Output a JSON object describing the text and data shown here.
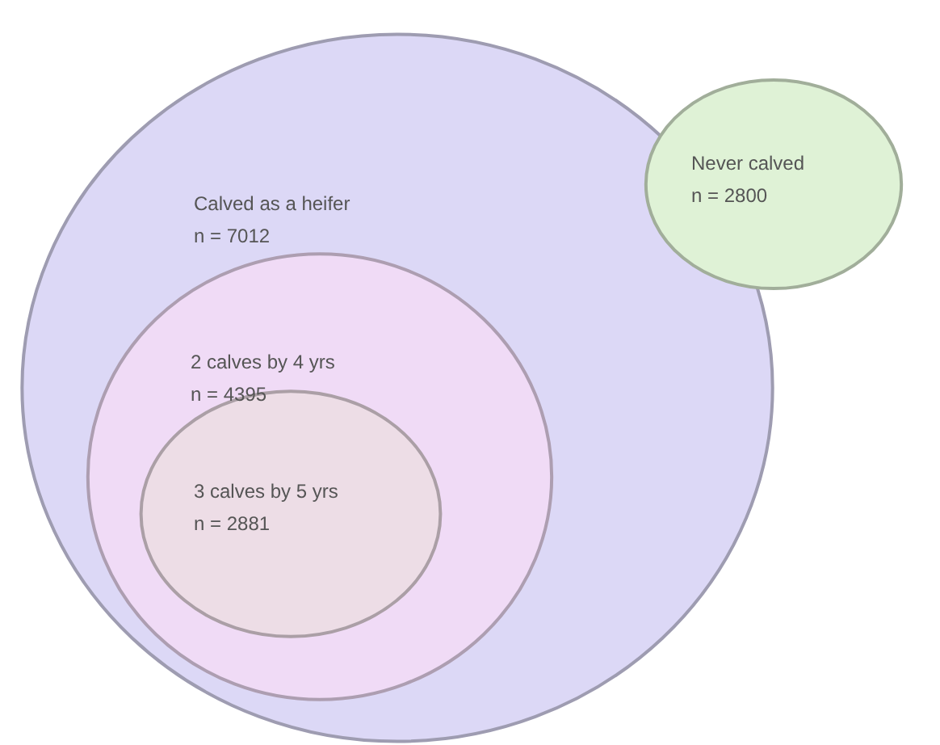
{
  "chart_data": {
    "type": "other",
    "categories": [
      "Calved as a heifer",
      "2 calves by 4 yrs",
      "3 calves by 5 yrs",
      "Never calved"
    ],
    "values": [
      7012,
      4395,
      2881,
      2800
    ],
    "value_labels": [
      "n = 7012",
      "n = 4395",
      "n = 2881",
      "n = 2800"
    ],
    "colors": [
      "#dcd8f6",
      "#f0dbf6",
      "#eddde6",
      "#dff2d6"
    ]
  }
}
